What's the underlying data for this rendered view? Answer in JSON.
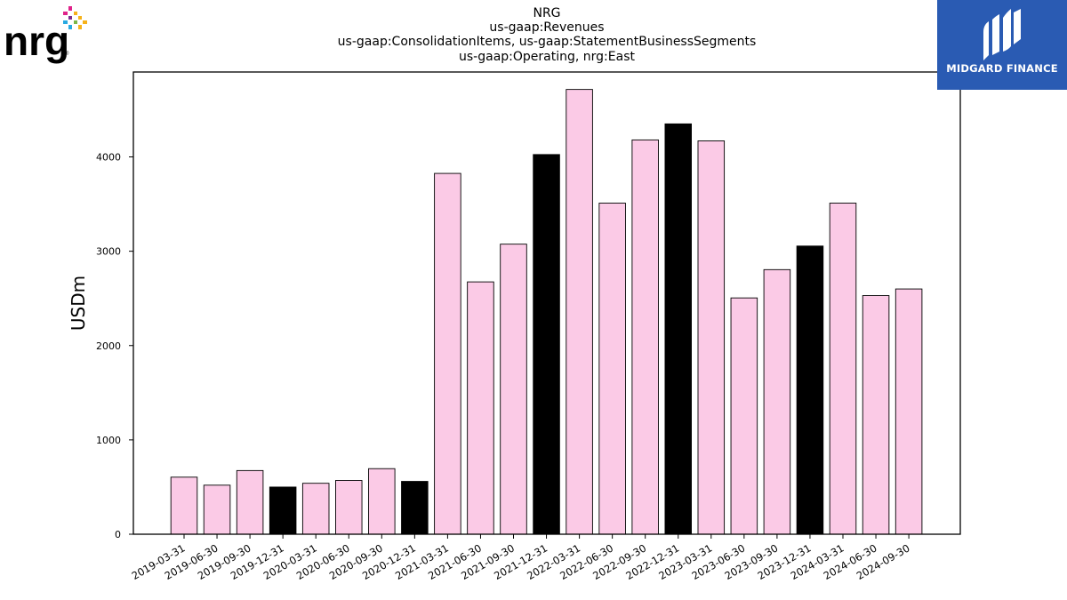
{
  "logos": {
    "company": "nrg",
    "company_mark": "®",
    "publisher": "MIDGARD FINANCE"
  },
  "colors": {
    "bar_default": "#fbcae6",
    "bar_q4": "#000000",
    "publisher_bg": "#2a5bb3"
  },
  "chart_data": {
    "type": "bar",
    "title": [
      "NRG",
      "us-gaap:Revenues",
      "us-gaap:ConsolidationItems, us-gaap:StatementBusinessSegments",
      "us-gaap:Operating, nrg:East"
    ],
    "xlabel": "",
    "ylabel": "USDm",
    "ylim": [
      0,
      4900
    ],
    "yticks": [
      0,
      1000,
      2000,
      3000,
      4000
    ],
    "grid": false,
    "categories": [
      "2019-03-31",
      "2019-06-30",
      "2019-09-30",
      "2019-12-31",
      "2020-03-31",
      "2020-06-30",
      "2020-09-30",
      "2020-12-31",
      "2021-03-31",
      "2021-06-30",
      "2021-09-30",
      "2021-12-31",
      "2022-03-31",
      "2022-06-30",
      "2022-09-30",
      "2022-12-31",
      "2023-03-31",
      "2023-06-30",
      "2023-09-30",
      "2023-12-31",
      "2024-03-31",
      "2024-06-30",
      "2024-09-30"
    ],
    "values": [
      605,
      520,
      675,
      500,
      540,
      570,
      695,
      560,
      3825,
      2675,
      3075,
      4025,
      4715,
      3510,
      4180,
      4350,
      4170,
      2505,
      2805,
      3055,
      3510,
      2530,
      2600
    ],
    "highlight": [
      false,
      false,
      false,
      true,
      false,
      false,
      false,
      true,
      false,
      false,
      false,
      true,
      false,
      false,
      false,
      true,
      false,
      false,
      false,
      true,
      false,
      false,
      false
    ]
  }
}
